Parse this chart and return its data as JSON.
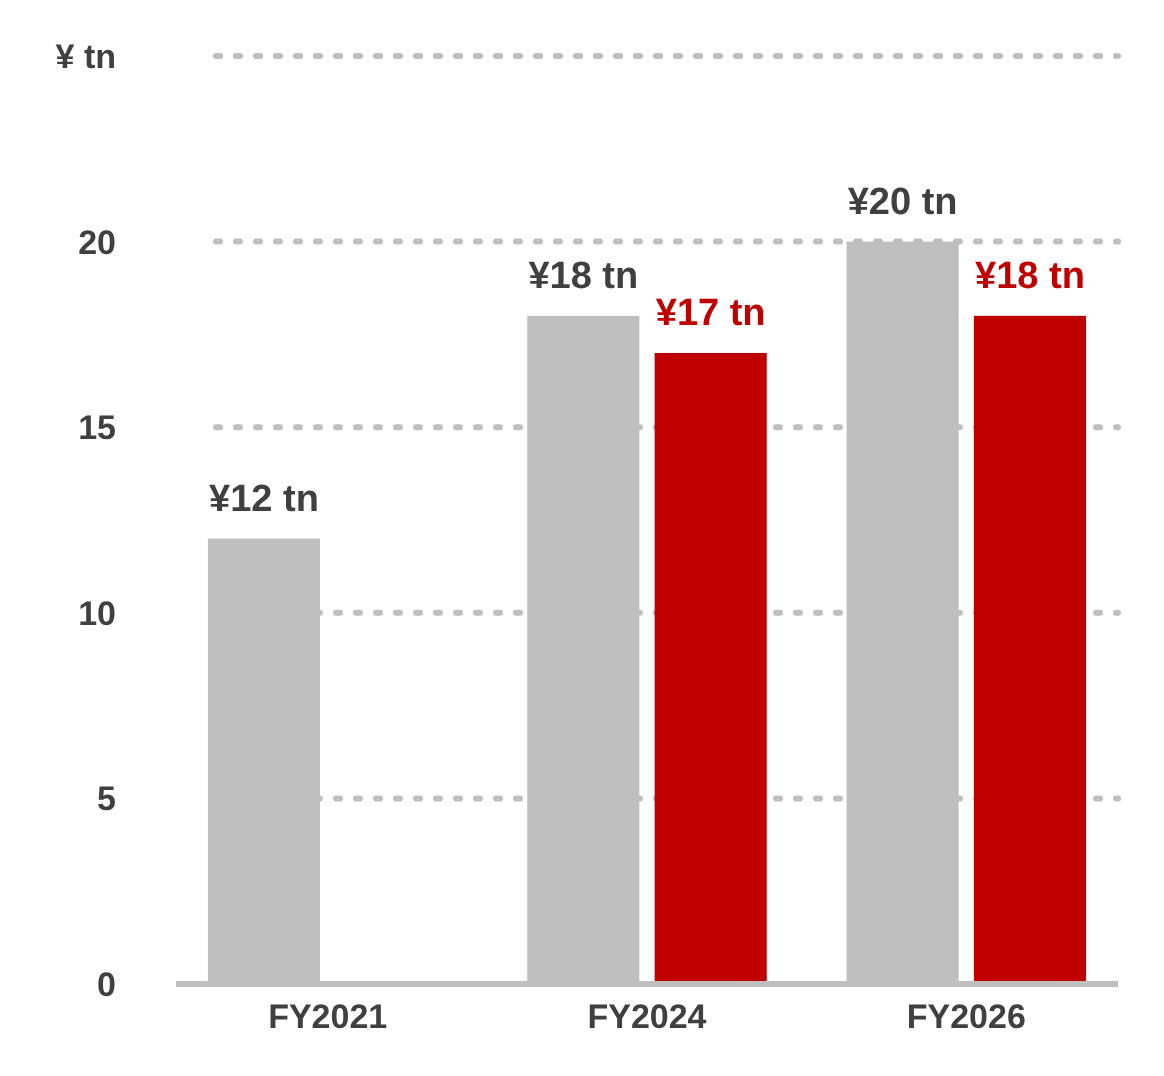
{
  "chart_data": {
    "type": "bar",
    "ylabel": "¥ tn",
    "categories": [
      "FY2021",
      "FY2024",
      "FY2026"
    ],
    "series": [
      {
        "color": "#bfbfbf",
        "values": [
          12,
          18,
          20
        ],
        "value_labels": [
          "¥12 tn",
          "¥18 tn",
          "¥20 tn"
        ]
      },
      {
        "color": "#c00000",
        "values": [
          null,
          17,
          18
        ],
        "value_labels": [
          null,
          "¥17 tn",
          "¥18 tn"
        ]
      }
    ],
    "ylim": [
      0,
      25
    ],
    "yticks": [
      0,
      5,
      10,
      15,
      20,
      {
        "value": 25,
        "label": null
      }
    ],
    "grid": "y"
  }
}
